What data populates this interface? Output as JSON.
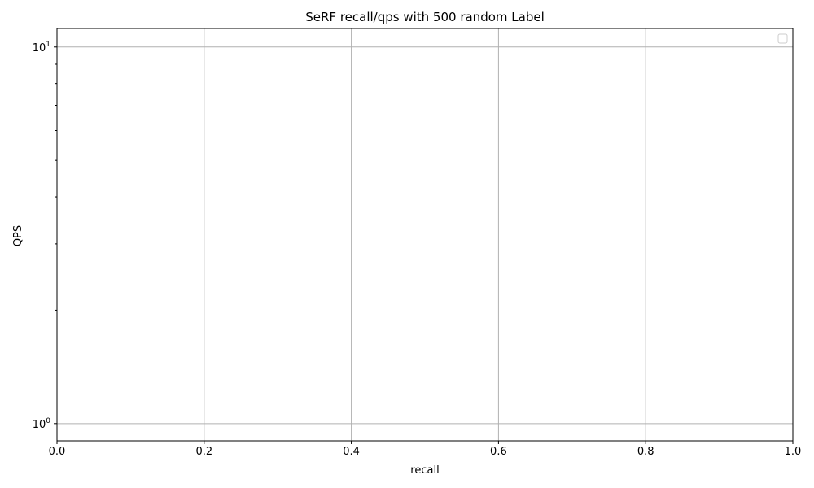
{
  "chart_data": {
    "type": "line",
    "title": "SeRF recall/qps with 500 random Label",
    "xlabel": "recall",
    "ylabel": "QPS",
    "xlim": [
      0.0,
      1.0
    ],
    "ylim": [
      0.9,
      11.2
    ],
    "yscale": "log",
    "x_ticks": [
      0.0,
      0.2,
      0.4,
      0.6,
      0.8,
      1.0
    ],
    "x_tick_labels": [
      "0.0",
      "0.2",
      "0.4",
      "0.6",
      "0.8",
      "1.0"
    ],
    "y_major_ticks": [
      {
        "value": 1,
        "base": "10",
        "exp": "0"
      },
      {
        "value": 10,
        "base": "10",
        "exp": "1"
      }
    ],
    "y_minor_ticks": [
      2,
      3,
      4,
      5,
      6,
      7,
      8,
      9
    ],
    "grid": true,
    "legend": {
      "placement": "top-right",
      "entries": []
    },
    "series": []
  },
  "colors": {
    "grid": "#b0b0b0",
    "axis": "#000000",
    "background": "#ffffff"
  }
}
